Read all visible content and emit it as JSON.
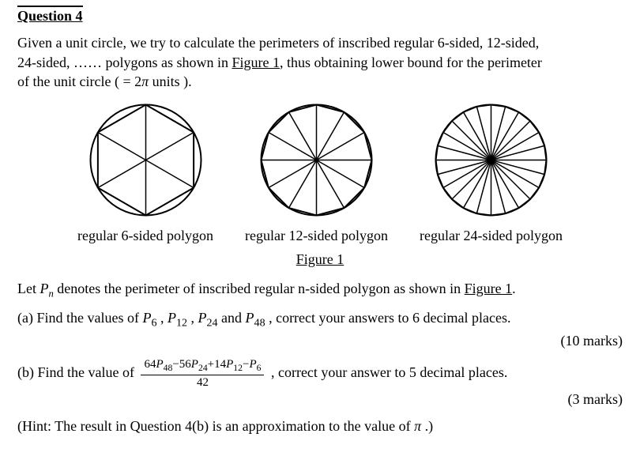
{
  "heading": "Question 4",
  "intro_1": "Given a unit circle, we try to calculate the perimeters of inscribed regular 6-sided, 12-sided,",
  "intro_2": "24-sided, …… polygons as shown in ",
  "intro_ref": "Figure 1",
  "intro_3": ", thus obtaining lower bound for the perimeter",
  "intro_4": "of the unit circle ( = 2",
  "pi": "π",
  "intro_5": " units ).",
  "figures": {
    "n_values": [
      6,
      12,
      24
    ],
    "radius": 70,
    "svg_size": 155,
    "stroke": "#000000",
    "stroke_width": 2,
    "captions": [
      "regular 6-sided polygon",
      "regular 12-sided polygon",
      "regular 24-sided polygon"
    ],
    "title": "Figure 1"
  },
  "let_1": "Let  ",
  "Pn": "P",
  "Pn_sub": "n",
  "let_2": "  denotes the perimeter of inscribed regular n-sided polygon as shown in ",
  "let_ref": "Figure 1",
  "let_3": ".",
  "a_1": "(a) Find the values of ",
  "P6": "P",
  "P6s": "6",
  "c1": " , ",
  "P12": "P",
  "P12s": "12",
  "c2": " , ",
  "P24": "P",
  "P24s": "24",
  "c3": " and ",
  "P48": "P",
  "P48s": "48",
  "a_2": " , correct your answers to 6 decimal places.",
  "a_marks": "(10 marks)",
  "b_1": "(b) Find the value of ",
  "frac_num_parts": {
    "c64": "64",
    "P48": "P",
    "P48s": "48",
    "m56": "−56",
    "P24": "P",
    "P24s": "24",
    "p14": "+14",
    "P12": "P",
    "P12s": "12",
    "m1": "−",
    "P6": "P",
    "P6s": "6"
  },
  "frac_den": "42",
  "b_2": " , correct your answer to 5 decimal places.",
  "b_marks": "(3 marks)",
  "hint_1": "(Hint: The result in Question 4(b) is an approximation to the value of ",
  "hint_pi": "π",
  "hint_2": " .)"
}
